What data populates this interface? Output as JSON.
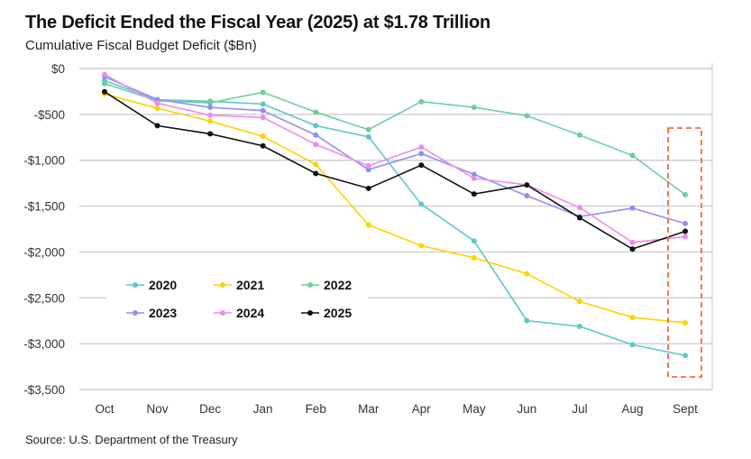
{
  "chart_data": {
    "type": "line",
    "title": "The Deficit Ended the Fiscal Year (2025) at $1.78 Trillion",
    "subtitle": "Cumulative Fiscal Budget Deficit ($Bn)",
    "source": "Source: U.S. Department of the Treasury",
    "xlabel": "",
    "ylabel": "",
    "categories": [
      "Oct",
      "Nov",
      "Dec",
      "Jan",
      "Feb",
      "Mar",
      "Apr",
      "May",
      "Jun",
      "Jul",
      "Aug",
      "Sept"
    ],
    "ylim": [
      -3500,
      0
    ],
    "yticks": [
      0,
      -500,
      -1000,
      -1500,
      -2000,
      -2500,
      -3000,
      -3500
    ],
    "ytick_labels": [
      "$0",
      "-$500",
      "-$1,000",
      "-$1,500",
      "-$2,000",
      "-$2,500",
      "-$3,000",
      "-$3,500"
    ],
    "grid": true,
    "legend_placement": "bottom-left",
    "highlight": {
      "category": "Sept",
      "style": "dashed box",
      "color": "#f26b3a"
    },
    "series": [
      {
        "name": "2020",
        "color": "#5bc8cc",
        "values": [
          -131,
          -341,
          -357,
          -387,
          -623,
          -745,
          -1479,
          -1880,
          -2749,
          -2811,
          -3011,
          -3129
        ]
      },
      {
        "name": "2021",
        "color": "#ffd200",
        "values": [
          -278,
          -433,
          -574,
          -738,
          -1046,
          -1705,
          -1932,
          -2063,
          -2237,
          -2539,
          -2713,
          -2772
        ]
      },
      {
        "name": "2022",
        "color": "#6dcf9c",
        "values": [
          -164,
          -351,
          -374,
          -259,
          -475,
          -666,
          -361,
          -423,
          -515,
          -725,
          -948,
          -1375
        ]
      },
      {
        "name": "2023",
        "color": "#8f8ff5",
        "values": [
          -89,
          -338,
          -423,
          -459,
          -725,
          -1102,
          -928,
          -1154,
          -1387,
          -1614,
          -1522,
          -1690
        ]
      },
      {
        "name": "2024",
        "color": "#f08be6",
        "values": [
          -66,
          -377,
          -509,
          -534,
          -827,
          -1060,
          -856,
          -1197,
          -1269,
          -1515,
          -1896,
          -1833
        ]
      },
      {
        "name": "2025",
        "color": "#111111",
        "values": [
          -253,
          -623,
          -712,
          -843,
          -1144,
          -1306,
          -1053,
          -1368,
          -1269,
          -1627,
          -1968,
          -1775
        ]
      }
    ]
  }
}
